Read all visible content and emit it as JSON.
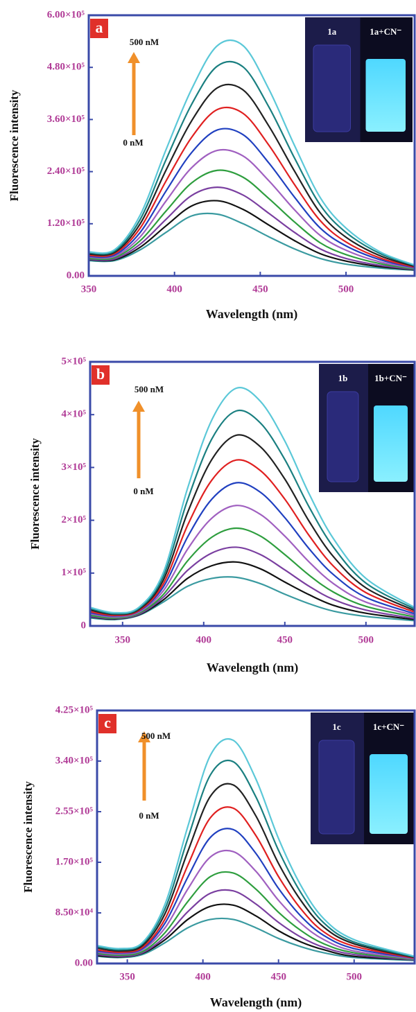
{
  "chart_data": [
    {
      "type": "line",
      "panel_label": "a",
      "xlabel": "Wavelength (nm)",
      "ylabel": "Fluorescence intensity",
      "annotations": [
        "500 nM",
        "0 nM"
      ],
      "inset_labels": [
        "1a",
        "1a+CN⁻"
      ],
      "xlim": [
        350,
        540
      ],
      "xticks": [
        350,
        400,
        450,
        500
      ],
      "ylim": [
        0,
        600000
      ],
      "yticks": [
        {
          "value": 0,
          "label": "0.00"
        },
        {
          "value": 120000,
          "label": "1.20×10⁵"
        },
        {
          "value": 240000,
          "label": "2.40×10⁵"
        },
        {
          "value": 360000,
          "label": "3.60×10⁵"
        },
        {
          "value": 480000,
          "label": "4.80×10⁵"
        },
        {
          "value": 600000,
          "label": "6.00×10⁵"
        }
      ],
      "x": [
        350,
        365,
        380,
        395,
        410,
        425,
        440,
        455,
        470,
        485,
        500,
        520,
        540
      ],
      "series": [
        {
          "color": "#3a9aa0",
          "values": [
            35000,
            35000,
            60000,
            100000,
            138000,
            142000,
            120000,
            90000,
            62000,
            40000,
            27000,
            18000,
            13000
          ]
        },
        {
          "color": "#111111",
          "values": [
            37000,
            37000,
            66000,
            115000,
            161000,
            173000,
            153000,
            117000,
            81000,
            51000,
            34000,
            21000,
            14000
          ]
        },
        {
          "color": "#7a3fa0",
          "values": [
            38000,
            39000,
            73000,
            130000,
            185000,
            204000,
            186000,
            144000,
            100000,
            62000,
            40000,
            24000,
            15000
          ]
        },
        {
          "color": "#2e9e3e",
          "values": [
            40000,
            42000,
            81000,
            149000,
            214000,
            243000,
            227000,
            178000,
            124000,
            76000,
            49000,
            28000,
            16000
          ]
        },
        {
          "color": "#a060c0",
          "values": [
            43000,
            45000,
            90000,
            172000,
            249000,
            289000,
            276000,
            219000,
            152000,
            93000,
            59000,
            32000,
            18000
          ]
        },
        {
          "color": "#2040c0",
          "values": [
            45000,
            48000,
            100000,
            195000,
            284000,
            336000,
            325000,
            260000,
            181000,
            110000,
            69000,
            37000,
            19000
          ]
        },
        {
          "color": "#e02020",
          "values": [
            47000,
            51000,
            110000,
            218000,
            319000,
            383000,
            374000,
            301000,
            210000,
            127000,
            78000,
            41000,
            20000
          ]
        },
        {
          "color": "#222222",
          "values": [
            50000,
            54000,
            120000,
            243000,
            357000,
            433000,
            428000,
            345000,
            241000,
            145000,
            89000,
            46000,
            22000
          ]
        },
        {
          "color": "#1a7f80",
          "values": [
            53000,
            57000,
            130000,
            267000,
            395000,
            483000,
            481000,
            389000,
            271000,
            163000,
            100000,
            51000,
            24000
          ]
        },
        {
          "color": "#5bc8d8",
          "values": [
            55000,
            60000,
            140000,
            290000,
            430000,
            530000,
            530000,
            430000,
            300000,
            180000,
            110000,
            55000,
            25000
          ]
        }
      ]
    },
    {
      "type": "line",
      "panel_label": "b",
      "xlabel": "Wavelength (nm)",
      "ylabel": "Fluorescence intensity",
      "annotations": [
        "500 nM",
        "0 nM"
      ],
      "inset_labels": [
        "1b",
        "1b+CN⁻"
      ],
      "xlim": [
        330,
        530
      ],
      "xticks": [
        350,
        400,
        450,
        500
      ],
      "ylim": [
        0,
        500000
      ],
      "yticks": [
        0,
        {
          "value": 100000,
          "label": "1×10⁵"
        },
        {
          "value": 200000,
          "label": "2×10⁵"
        },
        {
          "value": 300000,
          "label": "3×10⁵"
        },
        {
          "value": 400000,
          "label": "4×10⁵"
        },
        {
          "value": 500000,
          "label": "5×10⁵"
        }
      ],
      "x": [
        330,
        345,
        360,
        375,
        390,
        405,
        420,
        435,
        450,
        465,
        480,
        500,
        530
      ],
      "series": [
        {
          "color": "#3a9aa0",
          "values": [
            15000,
            12000,
            20000,
            45000,
            75000,
            90000,
            92000,
            80000,
            60000,
            42000,
            28000,
            18000,
            10000
          ]
        },
        {
          "color": "#111111",
          "values": [
            17000,
            13000,
            21000,
            49000,
            90000,
            114000,
            121000,
            108000,
            83000,
            59000,
            39000,
            24000,
            12000
          ]
        },
        {
          "color": "#7a3fa0",
          "values": [
            18000,
            14000,
            22000,
            54000,
            105000,
            138000,
            149000,
            135000,
            106000,
            75000,
            50000,
            30000,
            14000
          ]
        },
        {
          "color": "#2e9e3e",
          "values": [
            20000,
            15000,
            24000,
            59000,
            123000,
            168000,
            185000,
            170000,
            135000,
            96000,
            64000,
            37000,
            17000
          ]
        },
        {
          "color": "#a060c0",
          "values": [
            23000,
            17000,
            26000,
            66000,
            145000,
            204000,
            228000,
            211000,
            170000,
            121000,
            80000,
            45000,
            20000
          ]
        },
        {
          "color": "#2040c0",
          "values": [
            25000,
            19000,
            28000,
            73000,
            168000,
            240000,
            271000,
            253000,
            205000,
            146000,
            97000,
            54000,
            23000
          ]
        },
        {
          "color": "#e02020",
          "values": [
            27000,
            20000,
            29000,
            79000,
            190000,
            276000,
            314000,
            294000,
            240000,
            171000,
            113000,
            63000,
            26000
          ]
        },
        {
          "color": "#222222",
          "values": [
            30000,
            22000,
            31000,
            86000,
            214000,
            315000,
            361000,
            339000,
            278000,
            198000,
            131000,
            72000,
            29000
          ]
        },
        {
          "color": "#1a7f80",
          "values": [
            33000,
            23000,
            33000,
            93000,
            238000,
            354000,
            407000,
            384000,
            315000,
            225000,
            149000,
            81000,
            32000
          ]
        },
        {
          "color": "#5bc8d8",
          "values": [
            35000,
            25000,
            35000,
            100000,
            260000,
            390000,
            450000,
            425000,
            350000,
            250000,
            165000,
            90000,
            35000
          ]
        }
      ]
    },
    {
      "type": "line",
      "panel_label": "c",
      "xlabel": "Wavelength (nm)",
      "ylabel": "Fluorescence intensity",
      "annotations": [
        "500 nM",
        "0 nM"
      ],
      "inset_labels": [
        "1c",
        "1c+CN⁻"
      ],
      "xlim": [
        330,
        540
      ],
      "xticks": [
        350,
        400,
        450,
        500
      ],
      "ylim": [
        0,
        425000
      ],
      "yticks": [
        {
          "value": 0,
          "label": "0.00"
        },
        {
          "value": 85000,
          "label": "8.50×10⁴"
        },
        {
          "value": 170000,
          "label": "1.70×10⁵"
        },
        {
          "value": 255000,
          "label": "2.55×10⁵"
        },
        {
          "value": 340000,
          "label": "3.40×10⁵"
        },
        {
          "value": 425000,
          "label": "4.25×10⁵"
        }
      ],
      "x": [
        330,
        345,
        360,
        375,
        390,
        405,
        420,
        435,
        450,
        465,
        480,
        500,
        540
      ],
      "series": [
        {
          "color": "#3a9aa0",
          "values": [
            12000,
            10000,
            15000,
            35000,
            60000,
            74000,
            74000,
            60000,
            42000,
            28000,
            18000,
            10000,
            5000
          ]
        },
        {
          "color": "#111111",
          "values": [
            13000,
            11000,
            17000,
            40000,
            74000,
            96000,
            98000,
            80000,
            55000,
            36000,
            23000,
            12000,
            6000
          ]
        },
        {
          "color": "#7a3fa0",
          "values": [
            15000,
            12000,
            18000,
            45000,
            87000,
            118000,
            122000,
            100000,
            69000,
            44000,
            27000,
            15000,
            6000
          ]
        },
        {
          "color": "#2e9e3e",
          "values": [
            17000,
            14000,
            20000,
            52000,
            104000,
            146000,
            152000,
            125000,
            86000,
            55000,
            33000,
            18000,
            7000
          ]
        },
        {
          "color": "#a060c0",
          "values": [
            19000,
            16000,
            23000,
            60000,
            125000,
            179000,
            188000,
            155000,
            106000,
            67000,
            40000,
            21000,
            8000
          ]
        },
        {
          "color": "#2040c0",
          "values": [
            21000,
            18000,
            25000,
            68000,
            145000,
            212000,
            225000,
            185000,
            126000,
            79000,
            47000,
            25000,
            9000
          ]
        },
        {
          "color": "#e02020",
          "values": [
            23000,
            19000,
            27000,
            75000,
            165000,
            245000,
            261000,
            215000,
            146000,
            91000,
            53000,
            29000,
            9000
          ]
        },
        {
          "color": "#222222",
          "values": [
            26000,
            21000,
            30000,
            84000,
            188000,
            281000,
            300000,
            248000,
            168000,
            105000,
            61000,
            33000,
            10000
          ]
        },
        {
          "color": "#1a7f80",
          "values": [
            28000,
            23000,
            33000,
            92000,
            210000,
            317000,
            339000,
            280000,
            190000,
            118000,
            68000,
            36000,
            11000
          ]
        },
        {
          "color": "#5bc8d8",
          "values": [
            30000,
            25000,
            35000,
            100000,
            230000,
            350000,
            375000,
            310000,
            210000,
            130000,
            75000,
            40000,
            12000
          ]
        }
      ]
    }
  ]
}
